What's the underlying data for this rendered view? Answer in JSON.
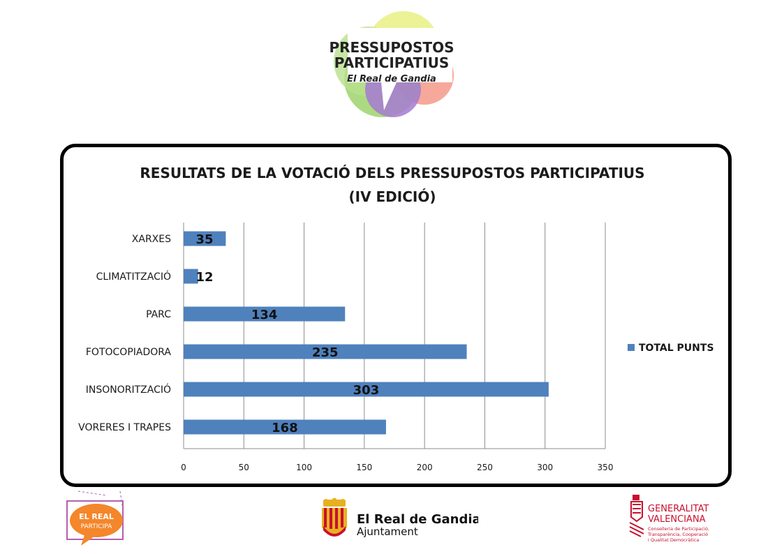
{
  "header_logo": {
    "line1": "PRESSUPOSTOS",
    "line2": "PARTICIPATIUS",
    "line3": "El Real de Gandia"
  },
  "chart_data": {
    "type": "bar",
    "orientation": "horizontal",
    "title_line1": "RESULTATS DE LA VOTACIÓ DELS PRESSUPOSTOS PARTICIPATIUS",
    "title_line2": "(IV EDICIÓ)",
    "categories": [
      "XARXES",
      "CLIMATITZACIÓ",
      "PARC",
      "FOTOCOPIADORA",
      "INSONORITZACIÓ",
      "VORERES I TRAPES"
    ],
    "series": [
      {
        "name": "TOTAL PUNTS",
        "values": [
          35,
          12,
          134,
          235,
          303,
          168
        ],
        "color": "#4f81bd"
      }
    ],
    "xlim": [
      0,
      350
    ],
    "xticks": [
      0,
      50,
      100,
      150,
      200,
      250,
      300,
      350
    ],
    "grid": true,
    "legend_position": "right"
  },
  "footer": {
    "elreal_line1": "EL REAL",
    "elreal_line2": "PARTICIPA",
    "ajuntament_line1": "El Real de Gandia",
    "ajuntament_line2": "Ajuntament",
    "gva_line1": "GENERALITAT",
    "gva_line2": "VALENCIANA",
    "gva_line3": "Conselleria de Participació,",
    "gva_line4": "Transparència, Cooperació",
    "gva_line5": "i Qualitat Democràtica"
  },
  "colors": {
    "bar": "#4f81bd",
    "accent_orange": "#f4862b",
    "accent_purple": "#b35fb0",
    "accent_red": "#c8102e"
  }
}
